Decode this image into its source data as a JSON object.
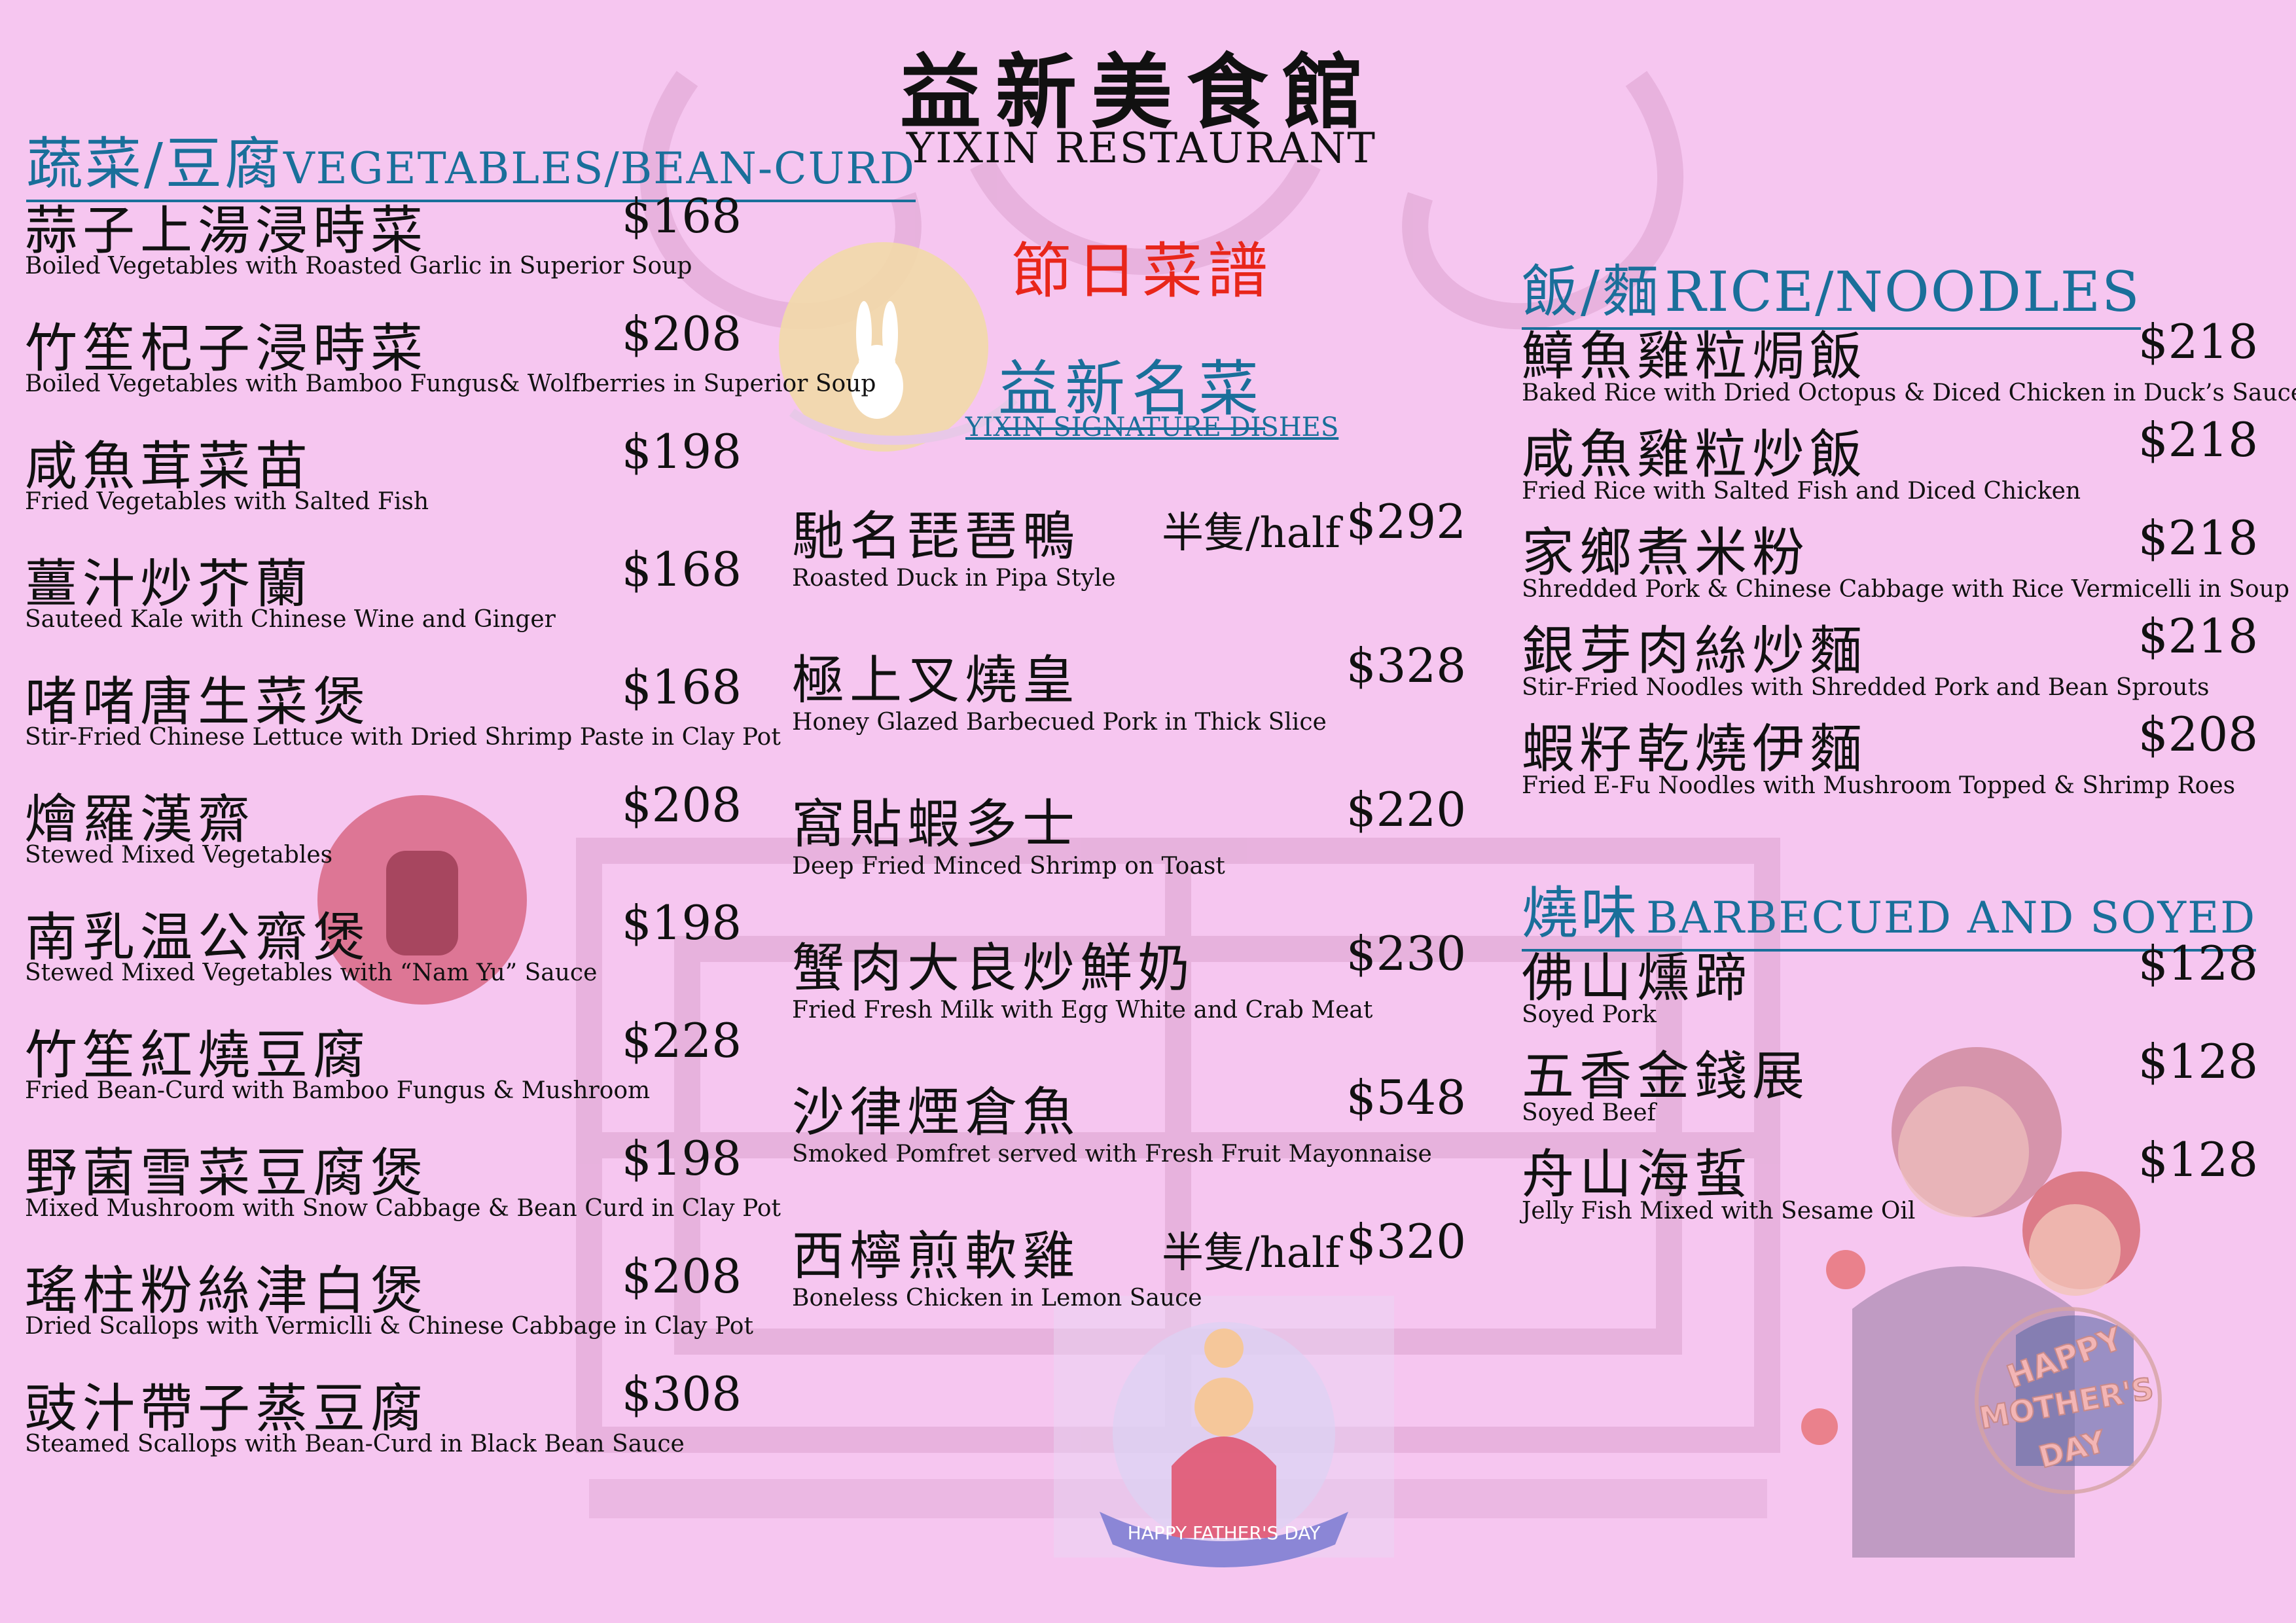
{
  "header": {
    "name_zh": "益新美食館",
    "name_en": "YIXIN RESTAURANT",
    "festive_title": "節日菜譜",
    "signature_zh": "益新名菜",
    "signature_en": "YIXIN SIGNATURE DISHES"
  },
  "colors": {
    "background": "#f6c6f0",
    "section_blue": "#1a6f9a",
    "festive_red": "#e8261a"
  },
  "left": {
    "title_zh": "蔬菜/豆腐",
    "title_en": "VEGETABLES/BEAN-CURD",
    "items": [
      {
        "zh": "蒜子上湯浸時菜",
        "en": "Boiled Vegetables with Roasted Garlic in Superior Soup",
        "price": "$168"
      },
      {
        "zh": "竹笙杞子浸時菜",
        "en": "Boiled Vegetables with Bamboo Fungus& Wolfberries in Superior Soup",
        "price": "$208"
      },
      {
        "zh": "咸魚茸菜苗",
        "en": "Fried Vegetables with Salted Fish",
        "price": "$198"
      },
      {
        "zh": "薑汁炒芥蘭",
        "en": "Sauteed Kale with Chinese Wine and Ginger",
        "price": "$168"
      },
      {
        "zh": "啫啫唐生菜煲",
        "en": "Stir-Fried Chinese Lettuce with Dried Shrimp Paste in Clay Pot",
        "price": "$168"
      },
      {
        "zh": "燴羅漢齋",
        "en": "Stewed Mixed Vegetables",
        "price": "$208"
      },
      {
        "zh": "南乳温公齋煲",
        "en": "Stewed Mixed Vegetables with “Nam Yu” Sauce",
        "price": "$198"
      },
      {
        "zh": "竹笙紅燒豆腐",
        "en": "Fried Bean-Curd with Bamboo Fungus & Mushroom",
        "price": "$228"
      },
      {
        "zh": "野菌雪菜豆腐煲",
        "en": "Mixed Mushroom with Snow Cabbage & Bean Curd in Clay Pot",
        "price": "$198"
      },
      {
        "zh": "瑤柱粉絲津白煲",
        "en": "Dried Scallops with Vermiclli & Chinese Cabbage in Clay Pot",
        "price": "$208"
      },
      {
        "zh": "豉汁帶子蒸豆腐",
        "en": "Steamed Scallops with Bean-Curd in Black Bean Sauce",
        "price": "$308"
      }
    ]
  },
  "center": {
    "items": [
      {
        "zh": "馳名琵琶鴨",
        "en": "Roasted Duck in Pipa Style",
        "half": "半隻/half",
        "price": "$292"
      },
      {
        "zh": "極上叉燒皇",
        "en": "Honey Glazed Barbecued Pork in Thick Slice",
        "price": "$328"
      },
      {
        "zh": "窩貼蝦多士",
        "en": "Deep Fried Minced Shrimp on Toast",
        "price": "$220"
      },
      {
        "zh": "蟹肉大良炒鮮奶",
        "en": "Fried Fresh Milk with Egg White and Crab Meat",
        "price": "$230"
      },
      {
        "zh": "沙律煙倉魚",
        "en": "Smoked Pomfret served with Fresh Fruit Mayonnaise",
        "price": "$548"
      },
      {
        "zh": "西檸煎軟雞",
        "en": "Boneless Chicken in Lemon Sauce",
        "half": "半隻/half",
        "price": "$320"
      }
    ]
  },
  "right": {
    "rice_title_zh": "飯/麵",
    "rice_title_en": "RICE/NOODLES",
    "rice_items": [
      {
        "zh": "鱆魚雞粒焗飯",
        "en": "Baked Rice with Dried Octopus & Diced Chicken in Duck’s Sauce",
        "price": "$218"
      },
      {
        "zh": "咸魚雞粒炒飯",
        "en": "Fried Rice with Salted Fish and Diced Chicken",
        "price": "$218"
      },
      {
        "zh": "家鄉煮米粉",
        "en": "Shredded Pork & Chinese Cabbage with Rice Vermicelli in Soup",
        "price": "$218"
      },
      {
        "zh": "銀芽肉絲炒麵",
        "en": "Stir-Fried Noodles with Shredded Pork and Bean Sprouts",
        "price": "$218"
      },
      {
        "zh": "蝦籽乾燒伊麵",
        "en": "Fried E-Fu Noodles with Mushroom Topped & Shrimp Roes",
        "price": "$208"
      }
    ],
    "bbq_title_zh": "燒味",
    "bbq_title_en": "BARBECUED AND SOYED",
    "bbq_items": [
      {
        "zh": "佛山燻蹄",
        "en": "Soyed Pork",
        "price": "$128"
      },
      {
        "zh": "五香金錢展",
        "en": "Soyed Beef",
        "price": "$128"
      },
      {
        "zh": "舟山海蜇",
        "en": "Jelly Fish Mixed with Sesame Oil",
        "price": "$128"
      }
    ]
  },
  "badges": {
    "father": "HAPPY FATHER'S DAY",
    "mother_1": "HAPPY",
    "mother_2": "MOTHER'S",
    "mother_3": "DAY"
  }
}
